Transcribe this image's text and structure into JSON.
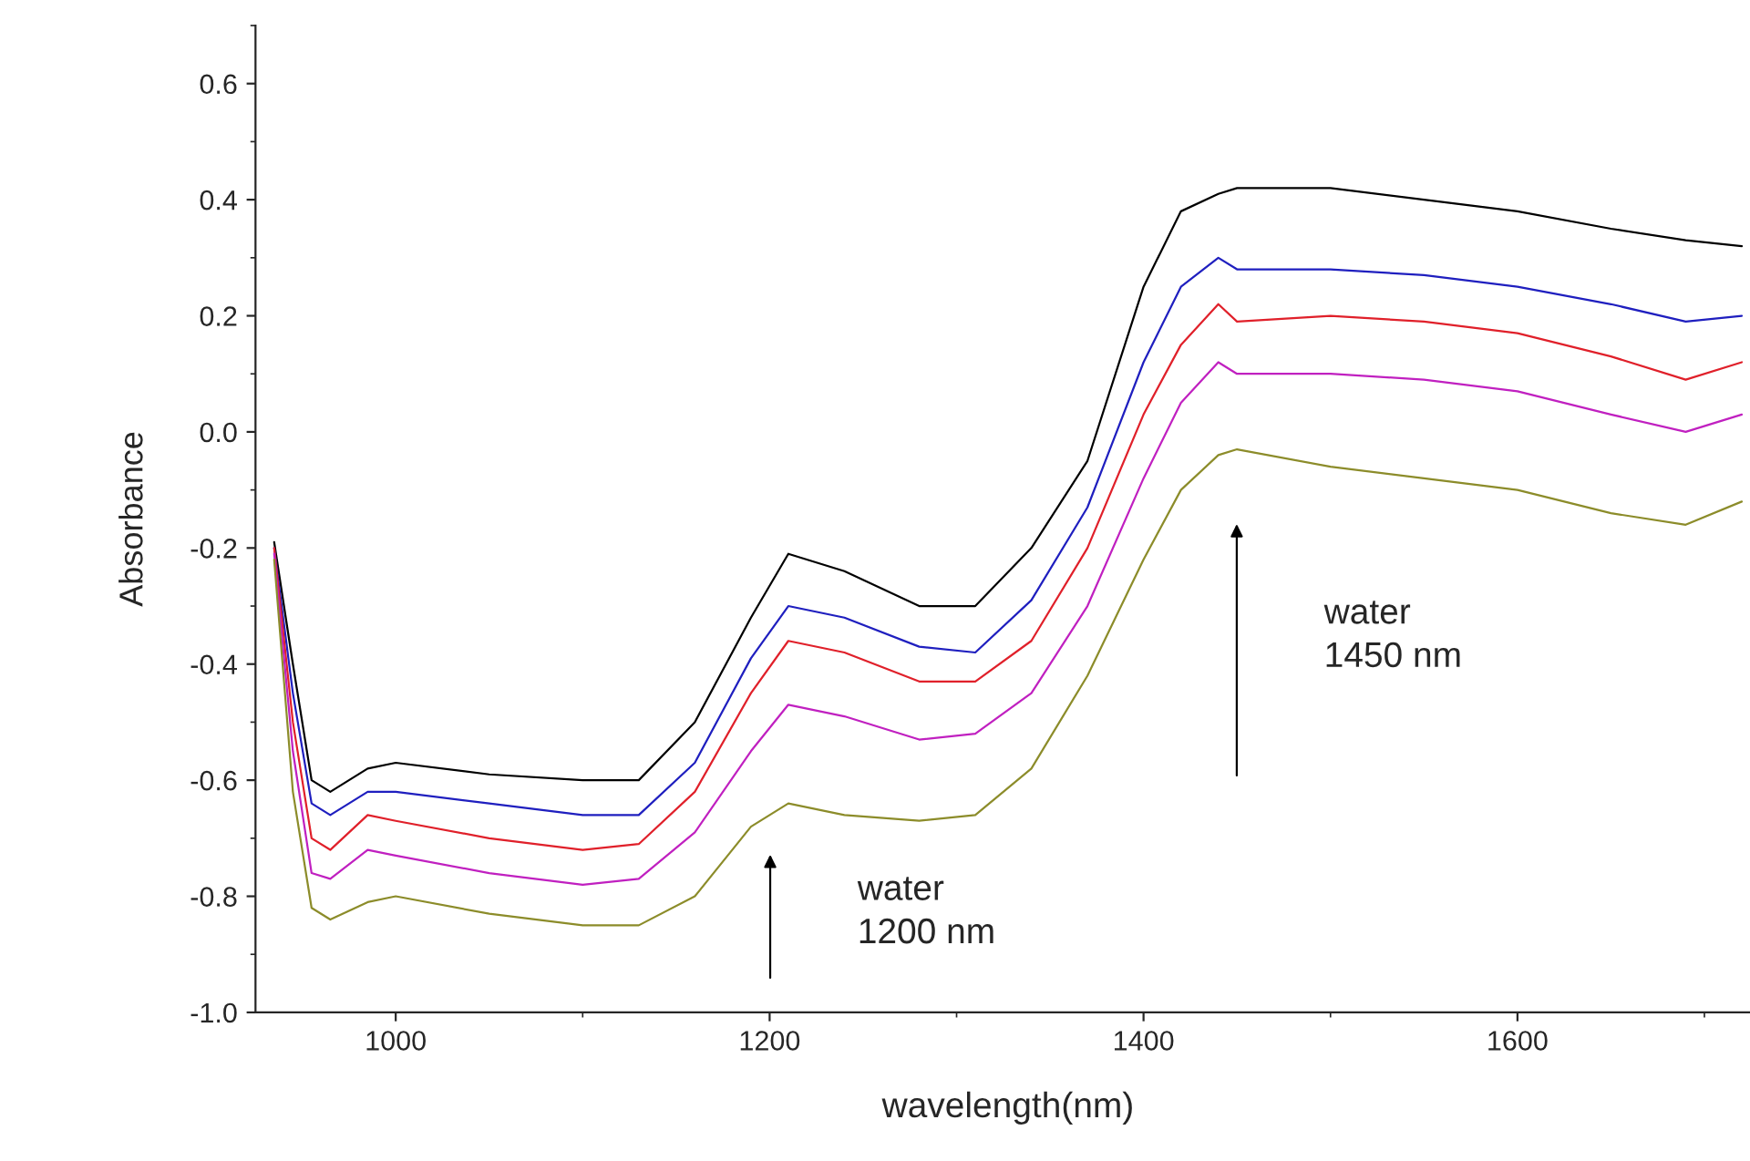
{
  "chart_data": {
    "type": "line",
    "xlabel": "wavelength(nm)",
    "ylabel": "Absorbance",
    "xlim": [
      925,
      1730
    ],
    "xticks": [
      1000,
      1200,
      1400,
      1600
    ],
    "ylim": [
      -1.0,
      0.7
    ],
    "yticks": [
      {
        "value": -1.0,
        "label": "-1.0"
      },
      -0.8,
      -0.6,
      -0.4,
      -0.2,
      {
        "value": 0.0,
        "label": "0.0"
      },
      0.2,
      0.4,
      0.6
    ],
    "x": [
      935,
      945,
      955,
      965,
      985,
      1000,
      1050,
      1100,
      1130,
      1160,
      1190,
      1210,
      1240,
      1280,
      1310,
      1340,
      1370,
      1400,
      1420,
      1440,
      1450,
      1500,
      1550,
      1600,
      1650,
      1690,
      1720
    ],
    "series": [
      {
        "color": "#000000",
        "values": [
          -0.19,
          -0.4,
          -0.6,
          -0.62,
          -0.58,
          -0.57,
          -0.59,
          -0.6,
          -0.6,
          -0.5,
          -0.32,
          -0.21,
          -0.24,
          -0.3,
          -0.3,
          -0.2,
          -0.05,
          0.25,
          0.38,
          0.41,
          0.42,
          0.42,
          0.4,
          0.38,
          0.35,
          0.33,
          0.32
        ]
      },
      {
        "color": "#1f1fbf",
        "values": [
          -0.2,
          -0.45,
          -0.64,
          -0.66,
          -0.62,
          -0.62,
          -0.64,
          -0.66,
          -0.66,
          -0.57,
          -0.39,
          -0.3,
          -0.32,
          -0.37,
          -0.38,
          -0.29,
          -0.13,
          0.12,
          0.25,
          0.3,
          0.28,
          0.28,
          0.27,
          0.25,
          0.22,
          0.19,
          0.2
        ]
      },
      {
        "color": "#e0202a",
        "values": [
          -0.2,
          -0.5,
          -0.7,
          -0.72,
          -0.66,
          -0.67,
          -0.7,
          -0.72,
          -0.71,
          -0.62,
          -0.45,
          -0.36,
          -0.38,
          -0.43,
          -0.43,
          -0.36,
          -0.2,
          0.03,
          0.15,
          0.22,
          0.19,
          0.2,
          0.19,
          0.17,
          0.13,
          0.09,
          0.12
        ]
      },
      {
        "color": "#c020c0",
        "values": [
          -0.21,
          -0.55,
          -0.76,
          -0.77,
          -0.72,
          -0.73,
          -0.76,
          -0.78,
          -0.77,
          -0.69,
          -0.55,
          -0.47,
          -0.49,
          -0.53,
          -0.52,
          -0.45,
          -0.3,
          -0.08,
          0.05,
          0.12,
          0.1,
          0.1,
          0.09,
          0.07,
          0.03,
          0.0,
          0.03
        ]
      },
      {
        "color": "#8c8c2a",
        "values": [
          -0.22,
          -0.62,
          -0.82,
          -0.84,
          -0.81,
          -0.8,
          -0.83,
          -0.85,
          -0.85,
          -0.8,
          -0.68,
          -0.64,
          -0.66,
          -0.67,
          -0.66,
          -0.58,
          -0.42,
          -0.22,
          -0.1,
          -0.04,
          -0.03,
          -0.06,
          -0.08,
          -0.1,
          -0.14,
          -0.16,
          -0.12
        ]
      }
    ],
    "annotations": [
      "water\n1200 nm",
      "water\n1450 nm"
    ]
  }
}
